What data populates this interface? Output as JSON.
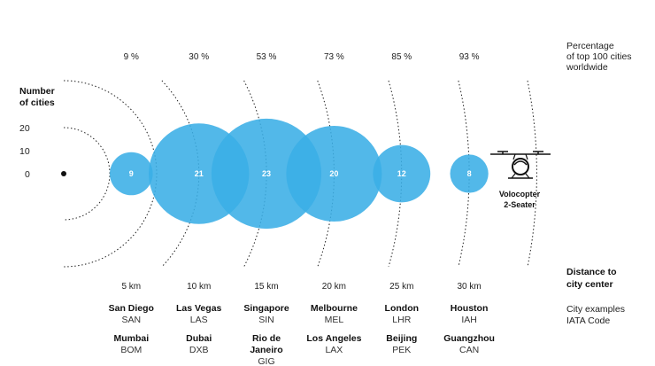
{
  "chart_data": {
    "type": "bubble",
    "y_axis": {
      "label_line1": "Number",
      "label_line2": "of cities",
      "ticks": [
        20,
        10,
        0
      ]
    },
    "percent_header": {
      "line1": "Percentage",
      "line2": "of top 100 cities",
      "line3": "worldwide"
    },
    "distance_header": {
      "line1": "Distance to",
      "line2": "city center"
    },
    "examples_header": {
      "line1": "City examples",
      "line2": "IATA Code"
    },
    "vehicle": {
      "line1": "Volocopter",
      "line2": "2-Seater"
    },
    "bubble_color": "#3aaee6",
    "columns": [
      {
        "distance_km": 5,
        "distance_label": "5 km",
        "percent_label": "9 %",
        "cities": 9,
        "examples": [
          {
            "city": [
              "San Diego"
            ],
            "code": "SAN"
          },
          {
            "city": [
              "Mumbai"
            ],
            "code": "BOM"
          }
        ]
      },
      {
        "distance_km": 10,
        "distance_label": "10 km",
        "percent_label": "30 %",
        "cities": 21,
        "examples": [
          {
            "city": [
              "Las Vegas"
            ],
            "code": "LAS"
          },
          {
            "city": [
              "Dubai"
            ],
            "code": "DXB"
          }
        ]
      },
      {
        "distance_km": 15,
        "distance_label": "15 km",
        "percent_label": "53 %",
        "cities": 23,
        "examples": [
          {
            "city": [
              "Singapore"
            ],
            "code": "SIN"
          },
          {
            "city": [
              "Rio de",
              "Janeiro"
            ],
            "code": "GIG"
          }
        ]
      },
      {
        "distance_km": 20,
        "distance_label": "20 km",
        "percent_label": "73 %",
        "cities": 20,
        "examples": [
          {
            "city": [
              "Melbourne"
            ],
            "code": "MEL"
          },
          {
            "city": [
              "Los Angeles"
            ],
            "code": "LAX"
          }
        ]
      },
      {
        "distance_km": 25,
        "distance_label": "25 km",
        "percent_label": "85 %",
        "cities": 12,
        "examples": [
          {
            "city": [
              "London"
            ],
            "code": "LHR"
          },
          {
            "city": [
              "Beijing"
            ],
            "code": "PEK"
          }
        ]
      },
      {
        "distance_km": 30,
        "distance_label": "30 km",
        "percent_label": "93 %",
        "cities": 8,
        "examples": [
          {
            "city": [
              "Houston"
            ],
            "code": "IAH"
          },
          {
            "city": [
              "Guangzhou"
            ],
            "code": "CAN"
          }
        ]
      }
    ]
  }
}
